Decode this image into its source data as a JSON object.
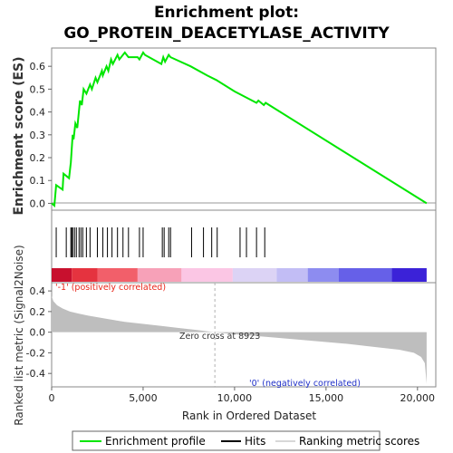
{
  "chart_data": {
    "type": "line",
    "title_line1": "Enrichment plot:",
    "title_line2": "GO_PROTEIN_DEACETYLASE_ACTIVITY",
    "ylabel_top": "Enrichment score (ES)",
    "ylabel_bottom": "Ranked list metric (Signal2Noise)",
    "xlabel": "Rank in Ordered Dataset",
    "xlim": [
      0,
      21000
    ],
    "xticks": [
      "0",
      "5,000",
      "10,000",
      "15,000",
      "20,000"
    ],
    "es_ylim": [
      -0.03,
      0.68
    ],
    "es_yticks": [
      "0.0",
      "0.1",
      "0.2",
      "0.3",
      "0.4",
      "0.5",
      "0.6"
    ],
    "metric_ylim": [
      -0.53,
      0.48
    ],
    "metric_yticks": [
      "-0.4",
      "-0.2",
      "0.0",
      "0.2",
      "0.4"
    ],
    "annotations": {
      "positive": "'-1' (positively correlated)",
      "negative": "'0' (negatively correlated)",
      "zero_cross": "Zero cross at 8923"
    },
    "zero_cross": 8923,
    "es_profile": {
      "x": [
        0,
        150,
        250,
        600,
        650,
        950,
        1050,
        1100,
        1150,
        1200,
        1300,
        1400,
        1550,
        1650,
        1750,
        1900,
        2100,
        2200,
        2400,
        2500,
        2750,
        2800,
        3000,
        3100,
        3250,
        3350,
        3600,
        3700,
        4000,
        4200,
        4700,
        4800,
        5000,
        5100,
        6000,
        6100,
        6200,
        6400,
        6500,
        7600,
        8500,
        9000,
        10000,
        11200,
        11300,
        11600,
        11700,
        20500
      ],
      "y": [
        0.0,
        -0.01,
        0.08,
        0.06,
        0.13,
        0.11,
        0.18,
        0.24,
        0.3,
        0.28,
        0.35,
        0.33,
        0.45,
        0.43,
        0.5,
        0.48,
        0.52,
        0.5,
        0.55,
        0.53,
        0.58,
        0.56,
        0.6,
        0.58,
        0.63,
        0.61,
        0.65,
        0.63,
        0.66,
        0.64,
        0.64,
        0.63,
        0.66,
        0.65,
        0.61,
        0.64,
        0.62,
        0.65,
        0.64,
        0.6,
        0.56,
        0.54,
        0.49,
        0.44,
        0.45,
        0.43,
        0.44,
        0.0
      ]
    },
    "hits": [
      250,
      800,
      1050,
      1100,
      1150,
      1250,
      1350,
      1500,
      1600,
      1700,
      1900,
      2100,
      2500,
      2800,
      3050,
      3300,
      3600,
      3900,
      4200,
      4800,
      5000,
      6050,
      6150,
      6400,
      6500,
      7650,
      8300,
      8750,
      9050,
      10300,
      10650,
      11200,
      11650
    ],
    "metric_profile": {
      "x": [
        0,
        100,
        300,
        600,
        1000,
        1500,
        2000,
        3000,
        4000,
        5000,
        6000,
        7000,
        8000,
        8923,
        10000,
        12000,
        14000,
        16000,
        18000,
        19000,
        19800,
        20200,
        20400,
        20500
      ],
      "y": [
        0.35,
        0.3,
        0.26,
        0.23,
        0.2,
        0.18,
        0.16,
        0.13,
        0.1,
        0.08,
        0.06,
        0.04,
        0.02,
        0.0,
        -0.02,
        -0.05,
        -0.08,
        -0.11,
        -0.15,
        -0.17,
        -0.2,
        -0.24,
        -0.3,
        -0.5
      ]
    },
    "color_bar": {
      "colors": [
        "#c8102e",
        "#e5333f",
        "#f25f6a",
        "#f7a1b8",
        "#fbc6e4",
        "#dcd3f5",
        "#c2bdf5",
        "#8d8cf0",
        "#6660e8",
        "#3b22d8"
      ],
      "bounds": [
        0,
        1100,
        2500,
        4700,
        7100,
        9900,
        12300,
        14000,
        15700,
        18600,
        20500
      ]
    },
    "colors": {
      "es_line": "#00e600",
      "hits": "#000000",
      "metric_fill": "#bebebe",
      "positive_text": "#e8251a",
      "negative_text": "#2030c8",
      "zero_line": "#b0b0b0"
    },
    "legend": {
      "items": [
        "Enrichment profile",
        "Hits",
        "Ranking metric scores"
      ]
    }
  }
}
